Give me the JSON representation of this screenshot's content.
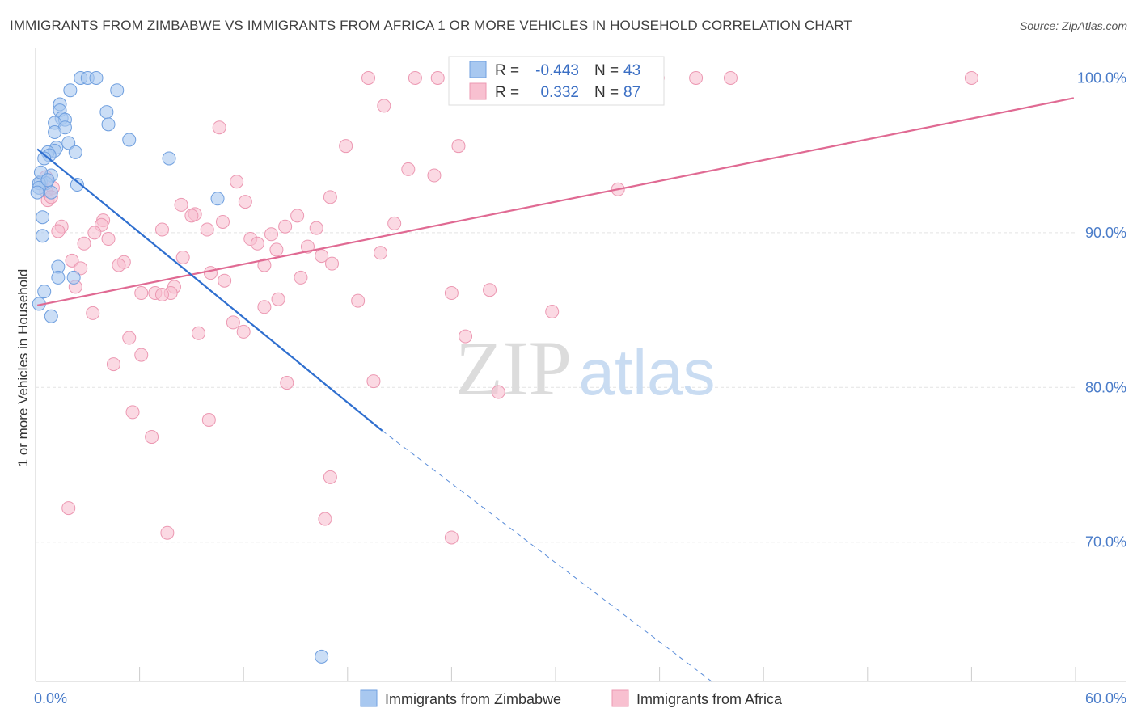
{
  "title": "IMMIGRANTS FROM ZIMBABWE VS IMMIGRANTS FROM AFRICA 1 OR MORE VEHICLES IN HOUSEHOLD CORRELATION CHART",
  "source": "Source: ZipAtlas.com",
  "watermark": {
    "zip": "ZIP",
    "atlas": "atlas"
  },
  "colors": {
    "zimbabwe_fill": "#a8c8f0",
    "zimbabwe_stroke": "#6f9fdf",
    "zimbabwe_line": "#2f6fcf",
    "africa_fill": "#f8c0d0",
    "africa_stroke": "#ec98b2",
    "africa_line": "#e06a93",
    "tick_text": "#4a7cc9",
    "grid": "#e3e3e3"
  },
  "stats_box": {
    "rows": [
      {
        "series": "Immigrants from Zimbabwe",
        "r_label": "R =",
        "r_value": "-0.443",
        "n_label": "N =",
        "n_value": "43"
      },
      {
        "series": "Immigrants from Africa",
        "r_label": "R =",
        "r_value": "0.332",
        "n_label": "N =",
        "n_value": "87"
      }
    ]
  },
  "chart_data": {
    "type": "scatter",
    "title": "IMMIGRANTS FROM ZIMBABWE VS IMMIGRANTS FROM AFRICA 1 OR MORE VEHICLES IN HOUSEHOLD CORRELATION CHART",
    "xlabel": "",
    "ylabel": "1 or more Vehicles in Household",
    "xlim": [
      0,
      60
    ],
    "ylim": [
      61,
      101.8
    ],
    "x_tick_labels": [
      {
        "value": 0,
        "label": "0.0%"
      },
      {
        "value": 60,
        "label": "60.0%"
      }
    ],
    "y_tick_labels": [
      {
        "value": 100,
        "label": "100.0%"
      },
      {
        "value": 90,
        "label": "90.0%"
      },
      {
        "value": 80,
        "label": "80.0%"
      },
      {
        "value": 70,
        "label": "70.0%"
      }
    ],
    "x_minor_ticks": [
      0,
      6,
      12,
      18,
      24,
      30,
      36,
      42,
      48,
      54,
      60
    ],
    "grid": true,
    "legend_position": "bottom",
    "series": [
      {
        "name": "Immigrants from Zimbabwe",
        "r": -0.443,
        "n": 43,
        "trend": {
          "x": [
            0.1,
            20.0
          ],
          "y": [
            95.4,
            77.2
          ]
        },
        "trend_dashed": {
          "x": [
            20.0,
            39.0
          ],
          "y": [
            77.2,
            61.0
          ]
        },
        "points": [
          {
            "x": 2.6,
            "y": 100.0
          },
          {
            "x": 3.0,
            "y": 100.0
          },
          {
            "x": 3.5,
            "y": 100.0
          },
          {
            "x": 2.0,
            "y": 99.2
          },
          {
            "x": 4.7,
            "y": 99.2
          },
          {
            "x": 1.4,
            "y": 98.3
          },
          {
            "x": 1.4,
            "y": 97.9
          },
          {
            "x": 4.1,
            "y": 97.8
          },
          {
            "x": 1.5,
            "y": 97.4
          },
          {
            "x": 1.7,
            "y": 97.3
          },
          {
            "x": 1.1,
            "y": 97.1
          },
          {
            "x": 4.2,
            "y": 97.0
          },
          {
            "x": 1.7,
            "y": 96.8
          },
          {
            "x": 1.1,
            "y": 96.5
          },
          {
            "x": 5.4,
            "y": 96.0
          },
          {
            "x": 1.9,
            "y": 95.8
          },
          {
            "x": 1.2,
            "y": 95.5
          },
          {
            "x": 1.1,
            "y": 95.3
          },
          {
            "x": 0.7,
            "y": 95.2
          },
          {
            "x": 2.3,
            "y": 95.2
          },
          {
            "x": 0.8,
            "y": 95.0
          },
          {
            "x": 0.5,
            "y": 94.8
          },
          {
            "x": 7.7,
            "y": 94.8
          },
          {
            "x": 0.9,
            "y": 93.7
          },
          {
            "x": 0.3,
            "y": 93.3
          },
          {
            "x": 0.6,
            "y": 93.2
          },
          {
            "x": 0.2,
            "y": 93.2
          },
          {
            "x": 2.4,
            "y": 93.1
          },
          {
            "x": 0.2,
            "y": 92.9
          },
          {
            "x": 0.9,
            "y": 92.6
          },
          {
            "x": 0.1,
            "y": 92.6
          },
          {
            "x": 10.5,
            "y": 92.2
          },
          {
            "x": 0.4,
            "y": 91.0
          },
          {
            "x": 0.4,
            "y": 89.8
          },
          {
            "x": 1.3,
            "y": 87.8
          },
          {
            "x": 1.3,
            "y": 87.1
          },
          {
            "x": 2.2,
            "y": 87.1
          },
          {
            "x": 0.5,
            "y": 86.2
          },
          {
            "x": 0.2,
            "y": 85.4
          },
          {
            "x": 0.9,
            "y": 84.6
          },
          {
            "x": 16.5,
            "y": 62.6
          },
          {
            "x": 0.3,
            "y": 93.9
          },
          {
            "x": 0.7,
            "y": 93.4
          }
        ]
      },
      {
        "name": "Immigrants from Africa",
        "r": 0.332,
        "n": 87,
        "trend": {
          "x": [
            0.1,
            59.9
          ],
          "y": [
            85.3,
            98.7
          ]
        },
        "points": [
          {
            "x": 19.2,
            "y": 100.0
          },
          {
            "x": 21.9,
            "y": 100.0
          },
          {
            "x": 23.2,
            "y": 100.0
          },
          {
            "x": 35.9,
            "y": 100.0
          },
          {
            "x": 38.1,
            "y": 100.0
          },
          {
            "x": 40.1,
            "y": 100.0
          },
          {
            "x": 54.0,
            "y": 100.0
          },
          {
            "x": 20.1,
            "y": 98.2
          },
          {
            "x": 10.6,
            "y": 96.8
          },
          {
            "x": 17.9,
            "y": 95.6
          },
          {
            "x": 24.4,
            "y": 95.6
          },
          {
            "x": 21.5,
            "y": 94.1
          },
          {
            "x": 23.0,
            "y": 93.7
          },
          {
            "x": 11.6,
            "y": 93.3
          },
          {
            "x": 33.6,
            "y": 92.8
          },
          {
            "x": 17.0,
            "y": 92.3
          },
          {
            "x": 12.1,
            "y": 92.0
          },
          {
            "x": 8.4,
            "y": 91.8
          },
          {
            "x": 0.7,
            "y": 92.1
          },
          {
            "x": 0.6,
            "y": 93.6
          },
          {
            "x": 9.2,
            "y": 91.2
          },
          {
            "x": 9.0,
            "y": 91.1
          },
          {
            "x": 15.1,
            "y": 91.1
          },
          {
            "x": 3.9,
            "y": 90.8
          },
          {
            "x": 10.8,
            "y": 90.7
          },
          {
            "x": 20.7,
            "y": 90.6
          },
          {
            "x": 3.8,
            "y": 90.5
          },
          {
            "x": 1.5,
            "y": 90.4
          },
          {
            "x": 14.4,
            "y": 90.4
          },
          {
            "x": 16.2,
            "y": 90.3
          },
          {
            "x": 9.9,
            "y": 90.2
          },
          {
            "x": 7.3,
            "y": 90.2
          },
          {
            "x": 1.3,
            "y": 90.1
          },
          {
            "x": 3.4,
            "y": 90.0
          },
          {
            "x": 13.6,
            "y": 89.9
          },
          {
            "x": 4.2,
            "y": 89.6
          },
          {
            "x": 12.4,
            "y": 89.6
          },
          {
            "x": 2.8,
            "y": 89.3
          },
          {
            "x": 12.8,
            "y": 89.3
          },
          {
            "x": 15.7,
            "y": 89.1
          },
          {
            "x": 13.9,
            "y": 88.9
          },
          {
            "x": 19.9,
            "y": 88.7
          },
          {
            "x": 16.5,
            "y": 88.5
          },
          {
            "x": 8.5,
            "y": 88.4
          },
          {
            "x": 2.1,
            "y": 88.2
          },
          {
            "x": 5.1,
            "y": 88.1
          },
          {
            "x": 17.1,
            "y": 88.0
          },
          {
            "x": 13.2,
            "y": 87.9
          },
          {
            "x": 4.8,
            "y": 87.9
          },
          {
            "x": 2.6,
            "y": 87.7
          },
          {
            "x": 10.1,
            "y": 87.4
          },
          {
            "x": 15.3,
            "y": 87.1
          },
          {
            "x": 10.9,
            "y": 86.9
          },
          {
            "x": 2.3,
            "y": 86.5
          },
          {
            "x": 8.0,
            "y": 86.5
          },
          {
            "x": 6.9,
            "y": 86.1
          },
          {
            "x": 26.2,
            "y": 86.3
          },
          {
            "x": 7.8,
            "y": 86.1
          },
          {
            "x": 7.3,
            "y": 86.0
          },
          {
            "x": 6.1,
            "y": 86.1
          },
          {
            "x": 24.0,
            "y": 86.1
          },
          {
            "x": 14.0,
            "y": 85.7
          },
          {
            "x": 18.6,
            "y": 85.6
          },
          {
            "x": 13.2,
            "y": 85.2
          },
          {
            "x": 29.8,
            "y": 84.9
          },
          {
            "x": 3.3,
            "y": 84.8
          },
          {
            "x": 11.4,
            "y": 84.2
          },
          {
            "x": 12.0,
            "y": 83.6
          },
          {
            "x": 9.4,
            "y": 83.5
          },
          {
            "x": 5.4,
            "y": 83.2
          },
          {
            "x": 24.8,
            "y": 83.3
          },
          {
            "x": 6.1,
            "y": 82.1
          },
          {
            "x": 4.5,
            "y": 81.5
          },
          {
            "x": 14.5,
            "y": 80.3
          },
          {
            "x": 19.5,
            "y": 80.4
          },
          {
            "x": 26.7,
            "y": 79.7
          },
          {
            "x": 5.6,
            "y": 78.4
          },
          {
            "x": 10.0,
            "y": 77.9
          },
          {
            "x": 6.7,
            "y": 76.8
          },
          {
            "x": 17.0,
            "y": 74.2
          },
          {
            "x": 1.9,
            "y": 72.2
          },
          {
            "x": 16.7,
            "y": 71.5
          },
          {
            "x": 7.6,
            "y": 70.6
          },
          {
            "x": 24.0,
            "y": 70.3
          },
          {
            "x": 0.6,
            "y": 92.7
          },
          {
            "x": 1.0,
            "y": 92.9
          },
          {
            "x": 0.9,
            "y": 92.3
          }
        ]
      }
    ]
  }
}
